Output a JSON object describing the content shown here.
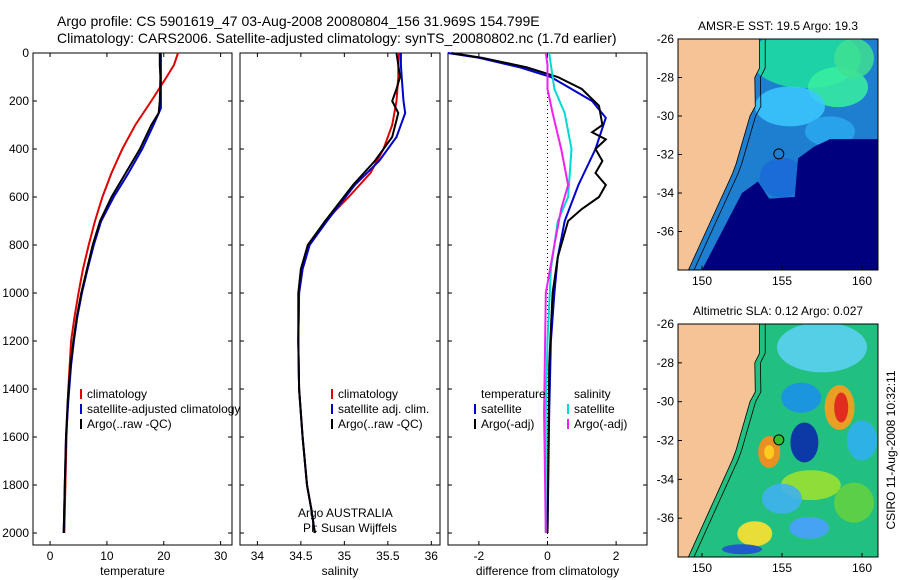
{
  "header": {
    "line1": "Argo profile: CS 5901619_47 03-Aug-2008 20080804_156 31.969S 154.799E",
    "line2": "Climatology: CARS2006. Satellite-adjusted climatology: synTS_20080802.nc (1.7d earlier)"
  },
  "colors": {
    "climatology": "#dd0000",
    "satellite": "#0000cc",
    "argo": "#000000",
    "salinity_satellite": "#00d8d8",
    "salinity_argo": "#ee22ee",
    "land": "#f5c396",
    "deep_ocean": "#00007f"
  },
  "chart_data": [
    {
      "type": "line",
      "panel": "temperature",
      "xlabel": "temperature",
      "ylabel": "",
      "xlim": [
        -3,
        32
      ],
      "ylim": [
        2050,
        0
      ],
      "y_reversed": true,
      "xticks": [
        "0",
        "10",
        "20",
        "30"
      ],
      "xtick_values": [
        0,
        10,
        20,
        30
      ],
      "yticks": [
        "0",
        "200",
        "400",
        "600",
        "800",
        "1000",
        "1200",
        "1400",
        "1600",
        "1800",
        "2000"
      ],
      "ytick_values": [
        0,
        200,
        400,
        600,
        800,
        1000,
        1200,
        1400,
        1600,
        1800,
        2000
      ],
      "series": [
        {
          "name": "climatology",
          "color": "#dd0000",
          "x": [
            22.5,
            21.8,
            20.5,
            17.8,
            15.0,
            12.7,
            10.8,
            9.2,
            7.9,
            6.8,
            5.8,
            5.0,
            4.3,
            3.7,
            3.2,
            2.9,
            2.7,
            2.5
          ],
          "y": [
            0,
            50,
            100,
            200,
            300,
            400,
            500,
            600,
            700,
            800,
            900,
            1000,
            1100,
            1200,
            1400,
            1600,
            1800,
            2000
          ]
        },
        {
          "name": "satellite-adjusted climatology",
          "color": "#0000cc",
          "x": [
            19.5,
            19.5,
            19.5,
            19.5,
            19.5,
            18.2,
            16.2,
            13.8,
            11.2,
            9.0,
            7.7,
            6.6,
            5.6,
            4.8,
            4.2,
            3.7,
            3.2,
            2.8,
            2.6,
            2.4
          ],
          "y": [
            0,
            50,
            100,
            200,
            230,
            300,
            400,
            500,
            600,
            700,
            800,
            900,
            1000,
            1100,
            1200,
            1300,
            1450,
            1600,
            1800,
            2000
          ]
        },
        {
          "name": "Argo(..raw -QC)",
          "color": "#000000",
          "x": [
            19.3,
            19.3,
            19.4,
            19.3,
            19.1,
            17.8,
            15.8,
            13.3,
            10.8,
            8.8,
            7.5,
            6.5,
            5.5,
            4.7,
            4.1,
            3.6,
            3.1,
            2.8,
            2.6,
            2.4
          ],
          "y": [
            0,
            50,
            100,
            200,
            250,
            300,
            400,
            500,
            600,
            700,
            800,
            900,
            1000,
            1100,
            1200,
            1300,
            1450,
            1600,
            1800,
            2000
          ]
        }
      ],
      "legend": [
        "climatology",
        "satellite-adjusted climatology",
        "Argo(..raw -QC)"
      ],
      "legend_placement": "lower-right"
    },
    {
      "type": "line",
      "panel": "salinity",
      "xlabel": "salinity",
      "xlim": [
        33.8,
        36.1
      ],
      "ylim": [
        2050,
        0
      ],
      "y_reversed": true,
      "xticks": [
        "34",
        "34.5",
        "35",
        "35.5",
        "36"
      ],
      "xtick_values": [
        34,
        34.5,
        35,
        35.5,
        36
      ],
      "series": [
        {
          "name": "climatology",
          "color": "#dd0000",
          "x": [
            35.63,
            35.62,
            35.62,
            35.6,
            35.55,
            35.45,
            35.3,
            35.05,
            34.78,
            34.6,
            34.52,
            34.48,
            34.47,
            34.48,
            34.52,
            34.57,
            34.62,
            34.66
          ],
          "y": [
            0,
            50,
            100,
            200,
            300,
            400,
            500,
            600,
            700,
            800,
            900,
            1000,
            1200,
            1400,
            1600,
            1800,
            1900,
            2000
          ]
        },
        {
          "name": "satellite adj. clim.",
          "color": "#0000cc",
          "x": [
            35.65,
            35.65,
            35.66,
            35.68,
            35.7,
            35.6,
            35.4,
            35.12,
            34.8,
            34.6,
            34.52,
            34.48,
            34.47,
            34.48,
            34.52,
            34.57,
            34.62,
            34.66
          ],
          "y": [
            0,
            50,
            100,
            200,
            250,
            350,
            450,
            550,
            700,
            800,
            900,
            1000,
            1200,
            1400,
            1600,
            1800,
            1900,
            2000
          ]
        },
        {
          "name": "Argo(..raw -QC)",
          "color": "#000000",
          "x": [
            35.6,
            35.62,
            35.64,
            35.6,
            35.55,
            35.62,
            35.55,
            35.35,
            35.1,
            34.78,
            34.58,
            34.5,
            34.47,
            34.47,
            34.48,
            34.52,
            34.57,
            34.62,
            34.66
          ],
          "y": [
            0,
            50,
            100,
            150,
            200,
            250,
            350,
            450,
            550,
            700,
            800,
            900,
            1000,
            1200,
            1400,
            1600,
            1800,
            1900,
            2000
          ]
        }
      ],
      "legend": [
        "climatology",
        "satellite adj. clim.",
        "Argo(..raw -QC)"
      ],
      "legend_placement": "lower-right",
      "annotation": [
        "Argo AUSTRALIA",
        "PI: Susan Wijffels"
      ]
    },
    {
      "type": "line",
      "panel": "difference",
      "xlabel": "difference from climatology",
      "xlim": [
        -2.9,
        2.9
      ],
      "ylim": [
        2050,
        0
      ],
      "y_reversed": true,
      "xticks": [
        "-2",
        "0",
        "2"
      ],
      "xtick_values": [
        -2,
        0,
        2
      ],
      "zero_line": "dotted",
      "series": [
        {
          "name": "temperature satellite",
          "color": "#0000cc",
          "x": [
            -2.9,
            -2.0,
            -0.8,
            0.1,
            0.7,
            1.3,
            1.7,
            1.4,
            0.9,
            0.5,
            0.3,
            0.2,
            0.1,
            0.05,
            0.02,
            0.0
          ],
          "y": [
            0,
            20,
            60,
            100,
            150,
            200,
            270,
            400,
            550,
            700,
            850,
            1000,
            1200,
            1500,
            1800,
            2000
          ]
        },
        {
          "name": "temperature Argo(-adj)",
          "color": "#000000",
          "x": [
            -2.8,
            -1.9,
            -0.6,
            0.3,
            1.0,
            1.5,
            1.6,
            1.3,
            1.7,
            1.4,
            1.6,
            1.4,
            1.7,
            1.5,
            1.0,
            0.6,
            0.3,
            0.15,
            0.05,
            0.02,
            0.0
          ],
          "y": [
            0,
            20,
            60,
            100,
            150,
            220,
            300,
            330,
            360,
            400,
            450,
            500,
            550,
            600,
            650,
            700,
            850,
            1000,
            1300,
            1700,
            2000
          ]
        },
        {
          "name": "salinity satellite",
          "color": "#00d8d8",
          "x": [
            0.05,
            0.1,
            0.2,
            0.5,
            0.7,
            0.6,
            0.3,
            0.1,
            0.0,
            -0.05,
            -0.05,
            -0.05
          ],
          "y": [
            0,
            50,
            150,
            250,
            400,
            600,
            700,
            900,
            1200,
            1500,
            1800,
            2000
          ]
        },
        {
          "name": "salinity Argo(-adj)",
          "color": "#ee22ee",
          "x": [
            -0.05,
            0.0,
            0.0,
            0.15,
            0.4,
            0.6,
            0.4,
            0.2,
            -0.05,
            -0.1,
            -0.05
          ],
          "y": [
            0,
            50,
            150,
            250,
            400,
            550,
            650,
            800,
            1000,
            1500,
            2000
          ]
        }
      ],
      "legend_headers": [
        "temperature",
        "salinity"
      ],
      "legend": [
        "satellite",
        "Argo(-adj)",
        "satellite",
        "Argo(-adj)"
      ],
      "legend_placement": "lower-right"
    },
    {
      "type": "heatmap",
      "panel": "sst-map",
      "title": "AMSR-E SST: 19.5 Argo: 19.3",
      "xlim": [
        148.5,
        161
      ],
      "ylim": [
        -38,
        -26
      ],
      "xticks": [
        "150",
        "155",
        "160"
      ],
      "xtick_values": [
        150,
        155,
        160
      ],
      "yticks": [
        "-26",
        "-28",
        "-30",
        "-32",
        "-34",
        "-36"
      ],
      "ytick_values": [
        -26,
        -28,
        -30,
        -32,
        -34,
        -36
      ],
      "marker": {
        "lon": 154.8,
        "lat": -31.97
      }
    },
    {
      "type": "heatmap",
      "panel": "sla-map",
      "title": "Altimetric SLA: 0.12 Argo: 0.027",
      "xlim": [
        148.5,
        161
      ],
      "ylim": [
        -38,
        -26
      ],
      "xticks": [
        "150",
        "155",
        "160"
      ],
      "xtick_values": [
        150,
        155,
        160
      ],
      "yticks": [
        "-26",
        "-28",
        "-30",
        "-32",
        "-34",
        "-36"
      ],
      "ytick_values": [
        -26,
        -28,
        -30,
        -32,
        -34,
        -36
      ],
      "marker": {
        "lon": 154.8,
        "lat": -31.97
      }
    }
  ],
  "footer": {
    "stamp": "CSIRO 11-Aug-2008 10:32:11"
  }
}
